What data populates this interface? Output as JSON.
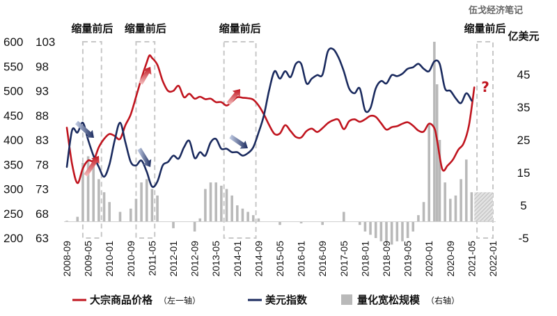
{
  "watermark": "伍戈经济笔记",
  "chart_data": {
    "type": "line",
    "left_axis_outer": {
      "ticks": [
        600,
        550,
        500,
        450,
        400,
        350,
        300,
        250,
        200
      ],
      "min": 200,
      "max": 600
    },
    "left_axis_inner": {
      "ticks": [
        103,
        98,
        93,
        88,
        83,
        78,
        73,
        68,
        63
      ],
      "min": 63,
      "max": 103
    },
    "right_axis": {
      "unit": "亿美元",
      "ticks": [
        45,
        35,
        25,
        15,
        5,
        -5
      ],
      "min": -5,
      "max": 55
    },
    "x_ticks": [
      "2008-09",
      "2009-05",
      "2010-01",
      "2010-09",
      "2011-05",
      "2012-01",
      "2012-09",
      "2013-05",
      "2014-01",
      "2014-09",
      "2015-05",
      "2016-01",
      "2016-09",
      "2017-05",
      "2018-01",
      "2018-09",
      "2019-05",
      "2020-01",
      "2020-09",
      "2021-05",
      "2022-01"
    ],
    "annotations": [
      {
        "label": "缩量前后",
        "start": "2009-03",
        "end": "2009-10"
      },
      {
        "label": "缩量前后",
        "start": "2010-11",
        "end": "2011-06"
      },
      {
        "label": "缩量前后",
        "start": "2013-08",
        "end": "2014-08"
      },
      {
        "label": "缩量前后",
        "start": "2021-07",
        "end": "2022-01"
      }
    ],
    "question_mark": "?",
    "series": [
      {
        "name": "大宗商品价格",
        "axis_note": "（左一轴）",
        "axis": "left_outer",
        "color": "#c0141e",
        "x": [
          "2008-09",
          "2008-11",
          "2009-01",
          "2009-03",
          "2009-05",
          "2009-07",
          "2009-09",
          "2009-11",
          "2010-01",
          "2010-03",
          "2010-05",
          "2010-07",
          "2010-09",
          "2010-11",
          "2011-01",
          "2011-03",
          "2011-04",
          "2011-05",
          "2011-07",
          "2011-09",
          "2011-11",
          "2012-01",
          "2012-03",
          "2012-05",
          "2012-07",
          "2012-09",
          "2012-11",
          "2013-01",
          "2013-03",
          "2013-05",
          "2013-07",
          "2013-09",
          "2013-11",
          "2014-01",
          "2014-03",
          "2014-05",
          "2014-07",
          "2014-09",
          "2014-11",
          "2015-01",
          "2015-03",
          "2015-05",
          "2015-07",
          "2015-09",
          "2015-11",
          "2016-01",
          "2016-03",
          "2016-05",
          "2016-07",
          "2016-09",
          "2016-11",
          "2017-01",
          "2017-03",
          "2017-05",
          "2017-07",
          "2017-09",
          "2017-11",
          "2018-01",
          "2018-03",
          "2018-05",
          "2018-07",
          "2018-09",
          "2018-11",
          "2019-01",
          "2019-03",
          "2019-05",
          "2019-07",
          "2019-09",
          "2019-11",
          "2020-01",
          "2020-03",
          "2020-04",
          "2020-06",
          "2020-08",
          "2020-10",
          "2020-12",
          "2021-02",
          "2021-04",
          "2021-06"
        ],
        "values": [
          425,
          350,
          312,
          342,
          358,
          358,
          385,
          402,
          412,
          408,
          402,
          430,
          452,
          488,
          525,
          558,
          572,
          567,
          553,
          520,
          500,
          500,
          510,
          487,
          494,
          484,
          488,
          483,
          484,
          477,
          477,
          470,
          478,
          487,
          486,
          485,
          482,
          470,
          452,
          430,
          412,
          413,
          430,
          418,
          406,
          405,
          418,
          423,
          416,
          424,
          434,
          440,
          441,
          422,
          438,
          442,
          437,
          442,
          449,
          447,
          434,
          421,
          426,
          428,
          433,
          436,
          429,
          419,
          417,
          433,
          424,
          400,
          340,
          348,
          360,
          380,
          393,
          430,
          507
        ]
      },
      {
        "name": "美元指数",
        "axis": "left_inner",
        "color": "#1a2a5e",
        "x": [
          "2008-09",
          "2008-11",
          "2009-01",
          "2009-03",
          "2009-05",
          "2009-07",
          "2009-09",
          "2009-11",
          "2010-01",
          "2010-03",
          "2010-05",
          "2010-07",
          "2010-09",
          "2010-11",
          "2011-01",
          "2011-03",
          "2011-05",
          "2011-07",
          "2011-09",
          "2011-11",
          "2012-01",
          "2012-03",
          "2012-05",
          "2012-07",
          "2012-09",
          "2012-11",
          "2013-01",
          "2013-03",
          "2013-05",
          "2013-07",
          "2013-09",
          "2013-11",
          "2014-01",
          "2014-03",
          "2014-05",
          "2014-07",
          "2014-09",
          "2014-11",
          "2015-01",
          "2015-03",
          "2015-05",
          "2015-07",
          "2015-09",
          "2015-11",
          "2016-01",
          "2016-03",
          "2016-05",
          "2016-07",
          "2016-09",
          "2016-11",
          "2017-01",
          "2017-03",
          "2017-05",
          "2017-07",
          "2017-09",
          "2017-11",
          "2018-01",
          "2018-03",
          "2018-05",
          "2018-07",
          "2018-09",
          "2018-11",
          "2019-01",
          "2019-03",
          "2019-05",
          "2019-07",
          "2019-09",
          "2019-11",
          "2020-01",
          "2020-03",
          "2020-05",
          "2020-07",
          "2020-09",
          "2020-11",
          "2021-01",
          "2021-03",
          "2021-05"
        ],
        "values": [
          77.5,
          85,
          84.5,
          86.5,
          83,
          79.8,
          77.5,
          75.5,
          78,
          83,
          86.5,
          82.5,
          78.5,
          77.8,
          78.8,
          76.5,
          73.5,
          74.5,
          77.8,
          78.5,
          79.8,
          79.2,
          81.5,
          82.8,
          79.3,
          80.5,
          79.8,
          82.5,
          83.2,
          81.2,
          81.2,
          80.5,
          80.5,
          79.8,
          80.3,
          81.5,
          84.5,
          88,
          93.2,
          97,
          95.5,
          97,
          95.8,
          98.5,
          98.5,
          94.5,
          95.5,
          96.2,
          96.3,
          101,
          101.5,
          99.8,
          97,
          93.5,
          92.5,
          93.5,
          89,
          89.5,
          93.5,
          95,
          94.5,
          96.2,
          96,
          96.5,
          97.5,
          97.8,
          98.5,
          97.5,
          97,
          99,
          98.5,
          93.5,
          93,
          91.5,
          90.5,
          92.5,
          91
        ]
      },
      {
        "name": "量化宽松规模",
        "axis_note": "（右轴）",
        "axis": "right",
        "type": "bar",
        "color": "#b9b9b9",
        "x": [
          "2008-09",
          "2009-01",
          "2009-03",
          "2009-05",
          "2009-07",
          "2009-09",
          "2009-11",
          "2010-01",
          "2010-05",
          "2010-09",
          "2010-11",
          "2011-01",
          "2011-03",
          "2011-05",
          "2011-07",
          "2012-01",
          "2012-09",
          "2012-11",
          "2013-01",
          "2013-03",
          "2013-05",
          "2013-07",
          "2013-09",
          "2013-11",
          "2014-01",
          "2014-03",
          "2014-05",
          "2014-07",
          "2014-09",
          "2015-05",
          "2016-01",
          "2016-09",
          "2017-05",
          "2017-11",
          "2018-01",
          "2018-03",
          "2018-05",
          "2018-07",
          "2018-09",
          "2018-11",
          "2019-01",
          "2019-03",
          "2019-05",
          "2019-07",
          "2019-09",
          "2019-11",
          "2020-01",
          "2020-03",
          "2020-04",
          "2020-05",
          "2020-07",
          "2020-09",
          "2020-11",
          "2021-01",
          "2021-03",
          "2021-05"
        ],
        "values": [
          0.3,
          1.5,
          18,
          20,
          19,
          13,
          9,
          6,
          3,
          4,
          7,
          12,
          13,
          10,
          8,
          -2,
          -3,
          1,
          10,
          12,
          12,
          11,
          10,
          8,
          5,
          4,
          3,
          2,
          1,
          -1,
          -0.5,
          -1,
          3,
          -1,
          -3,
          -4,
          -5,
          -6,
          -6,
          -7,
          -6,
          -6,
          -5,
          -3,
          2,
          6,
          30,
          55,
          42,
          25,
          12,
          7,
          8,
          13,
          19,
          9
        ]
      }
    ],
    "projection": {
      "x_start": "2021-06",
      "x_end": "2022-01",
      "value": 9
    }
  },
  "legend": [
    {
      "label": "大宗商品价格",
      "note": "（左一轴）",
      "symbol": "line",
      "color": "#c0141e"
    },
    {
      "label": "美元指数",
      "note": "",
      "symbol": "line",
      "color": "#1a2a5e"
    },
    {
      "label": "量化宽松规模",
      "note": "（右轴）",
      "symbol": "bar",
      "color": "#b9b9b9"
    }
  ]
}
